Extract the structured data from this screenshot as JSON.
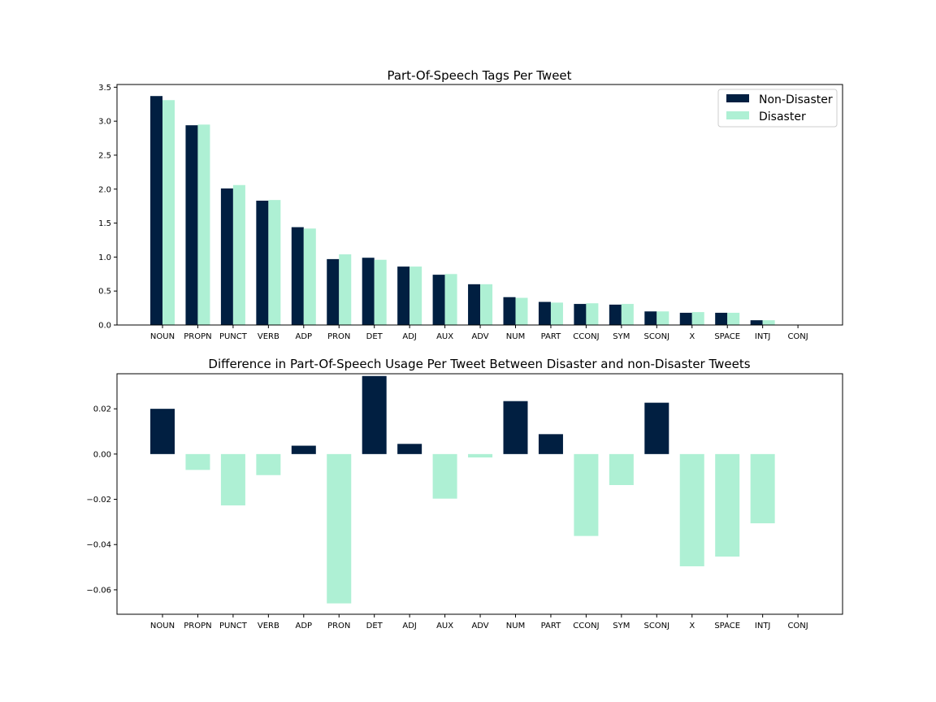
{
  "chart_data": [
    {
      "type": "bar",
      "title": "Part-Of-Speech Tags Per Tweet",
      "xlabel": "",
      "ylabel": "",
      "categories": [
        "NOUN",
        "PROPN",
        "PUNCT",
        "VERB",
        "ADP",
        "PRON",
        "DET",
        "ADJ",
        "AUX",
        "ADV",
        "NUM",
        "PART",
        "CCONJ",
        "SYM",
        "SCONJ",
        "X",
        "SPACE",
        "INTJ",
        "CONJ"
      ],
      "series": [
        {
          "name": "Non-Disaster",
          "color": "#011f41",
          "values": [
            3.37,
            2.94,
            2.01,
            1.83,
            1.44,
            0.97,
            0.99,
            0.86,
            0.74,
            0.6,
            0.41,
            0.34,
            0.31,
            0.3,
            0.2,
            0.18,
            0.18,
            0.07,
            0.0
          ]
        },
        {
          "name": "Disaster",
          "color": "#aef0d4",
          "values": [
            3.31,
            2.95,
            2.06,
            1.84,
            1.42,
            1.04,
            0.96,
            0.86,
            0.75,
            0.6,
            0.4,
            0.33,
            0.32,
            0.31,
            0.2,
            0.19,
            0.18,
            0.07,
            0.0
          ]
        }
      ],
      "ylim": [
        0,
        3.54
      ],
      "yticks": [
        0.0,
        0.5,
        1.0,
        1.5,
        2.0,
        2.5,
        3.0,
        3.5
      ],
      "ytick_labels": [
        "0.0",
        "0.5",
        "1.0",
        "1.5",
        "2.0",
        "2.5",
        "3.0",
        "3.5"
      ],
      "legend": {
        "placement": "top-right",
        "entries": [
          "Non-Disaster",
          "Disaster"
        ]
      },
      "grid": false
    },
    {
      "type": "bar",
      "title": "Difference in Part-Of-Speech Usage Per Tweet Between Disaster and non-Disaster Tweets",
      "xlabel": "",
      "ylabel": "",
      "categories": [
        "NOUN",
        "PROPN",
        "PUNCT",
        "VERB",
        "ADP",
        "PRON",
        "DET",
        "ADJ",
        "AUX",
        "ADV",
        "NUM",
        "PART",
        "CCONJ",
        "SYM",
        "SCONJ",
        "X",
        "SPACE",
        "INTJ",
        "CONJ"
      ],
      "values": [
        0.02,
        -0.007,
        -0.0227,
        -0.0093,
        0.0037,
        -0.066,
        0.0345,
        0.0045,
        -0.0197,
        -0.0015,
        0.0234,
        0.0088,
        -0.0362,
        -0.0137,
        0.0227,
        -0.0496,
        -0.0453,
        -0.0306,
        0.0
      ],
      "positive_color": "#011f41",
      "negative_color": "#aef0d4",
      "ylim": [
        -0.0708,
        0.0355
      ],
      "yticks": [
        -0.06,
        -0.04,
        -0.02,
        0.0,
        0.02
      ],
      "ytick_labels": [
        "−0.06",
        "−0.04",
        "−0.02",
        "0.00",
        "0.02"
      ],
      "grid": false
    }
  ]
}
